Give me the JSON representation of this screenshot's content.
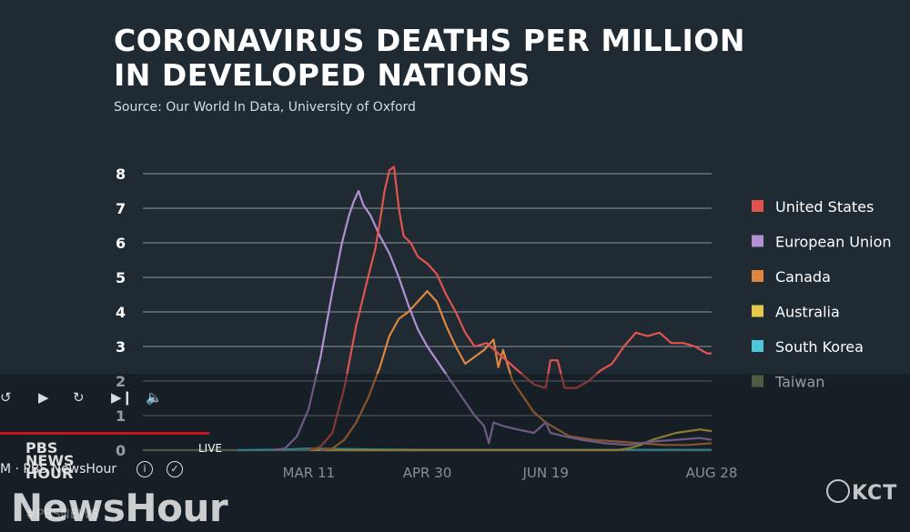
{
  "chart_data": {
    "type": "line",
    "title_line1": "CORONAVIRUS DEATHS PER MILLION",
    "title_line2": "IN DEVELOPED NATIONS",
    "subtitle": "Source: Our World In Data, University of Oxford",
    "xlabel": "",
    "ylabel": "",
    "ylim": [
      0,
      8
    ],
    "yticks": [
      "0",
      "1",
      "2",
      "3",
      "4",
      "5",
      "6",
      "7",
      "8"
    ],
    "xtick_labels": [
      "MAR 11",
      "APR 30",
      "JUN 19",
      "AUG 28"
    ],
    "xtick_days": [
      70,
      120,
      170,
      240
    ],
    "xlim": [
      0,
      240
    ],
    "grid": true,
    "legend_position": "right",
    "series": [
      {
        "name": "United States",
        "color": "#e05450",
        "points": [
          [
            70,
            0
          ],
          [
            75,
            0.1
          ],
          [
            80,
            0.5
          ],
          [
            85,
            1.8
          ],
          [
            90,
            3.6
          ],
          [
            95,
            5.0
          ],
          [
            98,
            5.8
          ],
          [
            100,
            6.6
          ],
          [
            102,
            7.5
          ],
          [
            104,
            8.1
          ],
          [
            106,
            8.2
          ],
          [
            108,
            7.0
          ],
          [
            110,
            6.2
          ],
          [
            113,
            6.0
          ],
          [
            116,
            5.6
          ],
          [
            120,
            5.4
          ],
          [
            124,
            5.1
          ],
          [
            128,
            4.5
          ],
          [
            132,
            4.0
          ],
          [
            136,
            3.4
          ],
          [
            140,
            3.0
          ],
          [
            145,
            3.1
          ],
          [
            150,
            2.8
          ],
          [
            155,
            2.5
          ],
          [
            160,
            2.2
          ],
          [
            165,
            1.9
          ],
          [
            170,
            1.8
          ],
          [
            172,
            2.6
          ],
          [
            175,
            2.6
          ],
          [
            178,
            1.8
          ],
          [
            183,
            1.8
          ],
          [
            188,
            2.0
          ],
          [
            193,
            2.3
          ],
          [
            198,
            2.5
          ],
          [
            203,
            3.0
          ],
          [
            208,
            3.4
          ],
          [
            213,
            3.3
          ],
          [
            218,
            3.4
          ],
          [
            223,
            3.1
          ],
          [
            228,
            3.1
          ],
          [
            233,
            3.0
          ],
          [
            238,
            2.8
          ],
          [
            240,
            2.8
          ]
        ]
      },
      {
        "name": "European Union",
        "color": "#b38fd3",
        "points": [
          [
            55,
            0
          ],
          [
            60,
            0.05
          ],
          [
            65,
            0.4
          ],
          [
            70,
            1.2
          ],
          [
            75,
            2.7
          ],
          [
            80,
            4.6
          ],
          [
            84,
            6.0
          ],
          [
            87,
            6.8
          ],
          [
            89,
            7.2
          ],
          [
            91,
            7.5
          ],
          [
            93,
            7.1
          ],
          [
            96,
            6.8
          ],
          [
            100,
            6.2
          ],
          [
            104,
            5.7
          ],
          [
            108,
            5.0
          ],
          [
            112,
            4.2
          ],
          [
            116,
            3.5
          ],
          [
            120,
            3.0
          ],
          [
            125,
            2.5
          ],
          [
            130,
            2.0
          ],
          [
            135,
            1.5
          ],
          [
            140,
            1.0
          ],
          [
            144,
            0.7
          ],
          [
            146,
            0.2
          ],
          [
            148,
            0.8
          ],
          [
            152,
            0.7
          ],
          [
            158,
            0.6
          ],
          [
            165,
            0.5
          ],
          [
            170,
            0.8
          ],
          [
            172,
            0.5
          ],
          [
            178,
            0.4
          ],
          [
            185,
            0.3
          ],
          [
            195,
            0.2
          ],
          [
            205,
            0.15
          ],
          [
            215,
            0.25
          ],
          [
            225,
            0.3
          ],
          [
            235,
            0.35
          ],
          [
            240,
            0.3
          ]
        ]
      },
      {
        "name": "Canada",
        "color": "#de8640",
        "points": [
          [
            75,
            0
          ],
          [
            80,
            0.05
          ],
          [
            85,
            0.3
          ],
          [
            90,
            0.8
          ],
          [
            95,
            1.5
          ],
          [
            100,
            2.4
          ],
          [
            104,
            3.3
          ],
          [
            108,
            3.8
          ],
          [
            112,
            4.0
          ],
          [
            116,
            4.3
          ],
          [
            120,
            4.6
          ],
          [
            124,
            4.3
          ],
          [
            128,
            3.6
          ],
          [
            132,
            3.0
          ],
          [
            136,
            2.5
          ],
          [
            140,
            2.7
          ],
          [
            144,
            2.9
          ],
          [
            148,
            3.2
          ],
          [
            150,
            2.4
          ],
          [
            152,
            2.9
          ],
          [
            156,
            2.0
          ],
          [
            160,
            1.6
          ],
          [
            165,
            1.1
          ],
          [
            170,
            0.8
          ],
          [
            175,
            0.6
          ],
          [
            180,
            0.4
          ],
          [
            190,
            0.3
          ],
          [
            200,
            0.25
          ],
          [
            210,
            0.2
          ],
          [
            220,
            0.15
          ],
          [
            230,
            0.15
          ],
          [
            240,
            0.2
          ]
        ]
      },
      {
        "name": "Australia",
        "color": "#e6c94a",
        "points": [
          [
            70,
            0
          ],
          [
            200,
            0
          ],
          [
            205,
            0.05
          ],
          [
            210,
            0.15
          ],
          [
            215,
            0.3
          ],
          [
            220,
            0.4
          ],
          [
            225,
            0.5
          ],
          [
            230,
            0.55
          ],
          [
            235,
            0.6
          ],
          [
            240,
            0.55
          ]
        ]
      },
      {
        "name": "South Korea",
        "color": "#4cc8da",
        "points": [
          [
            40,
            0
          ],
          [
            60,
            0.02
          ],
          [
            70,
            0.05
          ],
          [
            80,
            0.04
          ],
          [
            90,
            0.03
          ],
          [
            100,
            0.02
          ],
          [
            120,
            0.01
          ],
          [
            160,
            0.01
          ],
          [
            240,
            0.01
          ]
        ]
      },
      {
        "name": "Taiwan",
        "color": "#7d8f6a",
        "points": [
          [
            0,
            0
          ],
          [
            240,
            0
          ]
        ]
      }
    ]
  },
  "player": {
    "live_label": "LIVE",
    "channel_text": "M · PBS NewsHour",
    "pbs_text": "PBS",
    "news_text": "NEWS",
    "hour_text": "HOUR",
    "watermark_text": "NewsHour",
    "hashtag_text": "#PBSNEWS",
    "station_text": "KCT",
    "icons": [
      "replay-10-icon",
      "play-icon",
      "forward-15-icon",
      "next-icon",
      "volume-icon",
      "info-icon",
      "check-icon"
    ]
  }
}
